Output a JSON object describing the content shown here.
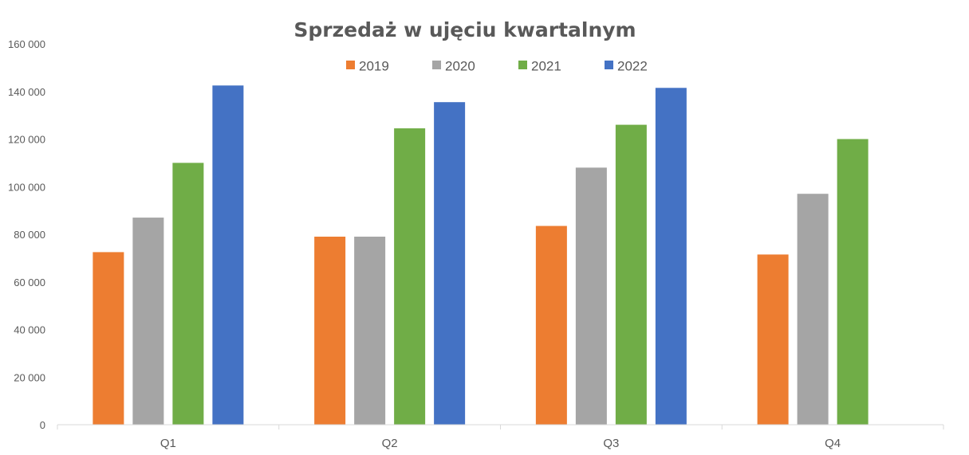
{
  "chart_data": {
    "type": "bar",
    "title": "Sprzedaż w ujęciu kwartalnym",
    "xlabel": "",
    "ylabel": "",
    "categories": [
      "Q1",
      "Q2",
      "Q3",
      "Q4"
    ],
    "series": [
      {
        "name": "2019",
        "color": "#ED7D31",
        "values": [
          72500,
          79000,
          83500,
          71500
        ]
      },
      {
        "name": "2020",
        "color": "#A5A5A5",
        "values": [
          87000,
          79000,
          108000,
          97000
        ]
      },
      {
        "name": "2021",
        "color": "#70AD47",
        "values": [
          110000,
          124500,
          126000,
          120000
        ]
      },
      {
        "name": "2022",
        "color": "#4472C4",
        "values": [
          142500,
          135500,
          141500,
          null
        ]
      }
    ],
    "ylim": [
      0,
      160000
    ],
    "yticks": [
      0,
      20000,
      40000,
      60000,
      80000,
      100000,
      120000,
      140000,
      160000
    ],
    "ytick_labels": [
      "0",
      "20 000",
      "40 000",
      "60 000",
      "80 000",
      "100 000",
      "120 000",
      "140 000",
      "160 000"
    ],
    "grid": false,
    "legend_position": "top"
  }
}
